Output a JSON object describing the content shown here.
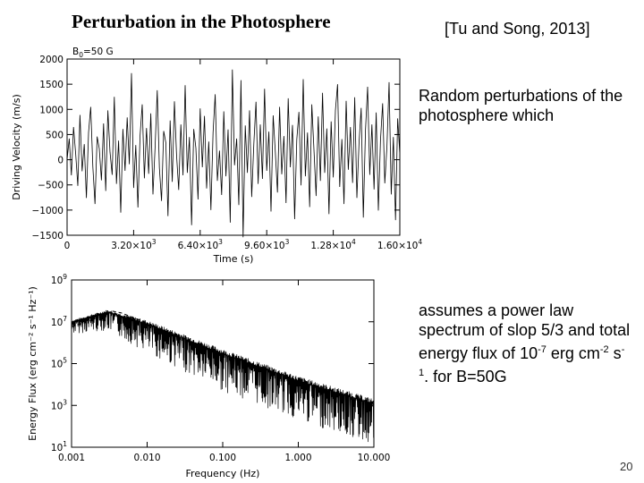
{
  "slide": {
    "title": "Perturbation in the Photosphere",
    "citation": "[Tu and Song, 2013]",
    "text1": "Random perturbations of the photosphere which",
    "text2_parts": [
      "assumes a power law spectrum of slop 5/3 and total energy flux of 10",
      "-7",
      " erg cm",
      "-2",
      " s",
      "-1",
      ". for B=50G"
    ],
    "page_number": "20"
  },
  "chart_data": [
    {
      "type": "line",
      "annotation": "B",
      "annotation_sub": "0",
      "annotation_rest": "=50 G",
      "xlabel": "Time (s)",
      "ylabel": "Driving Velocity (m/s)",
      "xlim": [
        0,
        16000
      ],
      "ylim": [
        -1500,
        2000
      ],
      "x_ticks": [
        0,
        3200,
        6400,
        9600,
        12800,
        16000
      ],
      "x_tick_labels": [
        {
          "mant": "0",
          "exp": ""
        },
        {
          "mant": "3.20×10",
          "exp": "3"
        },
        {
          "mant": "6.40×10",
          "exp": "3"
        },
        {
          "mant": "9.60×10",
          "exp": "3"
        },
        {
          "mant": "1.28×10",
          "exp": "4"
        },
        {
          "mant": "1.60×10",
          "exp": "4"
        }
      ],
      "y_ticks": [
        2000,
        1500,
        1000,
        500,
        0,
        -500,
        -1000,
        -1500
      ],
      "y_tick_labels": [
        "2000",
        "1500",
        "1000",
        "500",
        "0",
        "−500",
        "−1000",
        "−1500"
      ],
      "series": [
        {
          "values": [
            0,
            420,
            -310,
            650,
            120,
            -520,
            890,
            -230,
            310,
            -760,
            540,
            1050,
            -140,
            -880,
            460,
            220,
            -410,
            720,
            -620,
            980,
            150,
            -300,
            1250,
            -480,
            380,
            -1050,
            610,
            -220,
            840,
            -90,
            1720,
            -560,
            290,
            -950,
            480,
            1100,
            -370,
            630,
            -280,
            920,
            -690,
            250,
            1380,
            -160,
            -820,
            570,
            340,
            -1120,
            780,
            -440,
            1160,
            90,
            -600,
            700,
            -310,
            1480,
            -260,
            450,
            -1300,
            610,
            230,
            -790,
            1020,
            -150,
            870,
            -570,
            360,
            -1000,
            540,
            1300,
            -420,
            180,
            -700,
            960,
            -330,
            600,
            -1250,
            1790,
            -110,
            420,
            -900,
            1580,
            -1540,
            680,
            -260,
            980,
            -740,
            320,
            1150,
            -480,
            700,
            -380,
            1410,
            -220,
            560,
            -1030,
            880,
            160,
            -650,
            1050,
            -290,
            470,
            -860,
            1220,
            -150,
            690,
            -1180,
            400,
            950,
            -510,
            1600,
            -330,
            540,
            -940,
            1100,
            200,
            -720,
            860,
            -420,
            1330,
            -260,
            620,
            -1080,
            760,
            -350,
            980,
            1500,
            -540,
            410,
            -880,
            1170,
            -200,
            650,
            -460,
            1240,
            -760,
            330,
            1030,
            -1150,
            580,
            1450,
            -300,
            700,
            -590,
            940,
            -1010,
            390,
            1120,
            -470,
            260,
            1540,
            -690,
            450,
            -1200,
            820,
            110
          ]
        }
      ]
    },
    {
      "type": "line",
      "scale": "log-log",
      "xlabel": "Frequency (Hz)",
      "ylabel": "Energy Flux (erg cm⁻² s⁻¹ Hz⁻¹)",
      "xlim": [
        0.001,
        10
      ],
      "ylim": [
        10,
        1000000000
      ],
      "x_ticks": [
        0.001,
        0.01,
        0.1,
        1,
        10
      ],
      "x_tick_labels": [
        "0.001",
        "0.010",
        "0.100",
        "1.000",
        "10.000"
      ],
      "y_ticks": [
        1000000000,
        10000000,
        100000,
        1000,
        10
      ],
      "y_tick_labels": [
        {
          "mant": "10",
          "exp": "9"
        },
        {
          "mant": "10",
          "exp": "7"
        },
        {
          "mant": "10",
          "exp": "5"
        },
        {
          "mant": "10",
          "exp": "3"
        },
        {
          "mant": "10",
          "exp": "1"
        }
      ],
      "series": [
        {
          "style": "dashed",
          "x": [
            0.001,
            0.0015,
            0.002,
            0.0025,
            0.003,
            0.0035,
            0.0045,
            0.006,
            0.01
          ],
          "y": [
            6000000,
            9000000,
            13000000,
            20000000,
            28000000,
            32000000,
            27000000,
            18000000,
            9000000
          ]
        },
        {
          "style": "solid",
          "x": [
            0.001,
            0.003,
            0.01,
            0.1,
            1,
            10
          ],
          "y": [
            10000000,
            30000000,
            8000000,
            300000,
            15000,
            1200
          ],
          "spread_decades": [
            0.6,
            0.9,
            1.4,
            1.8,
            1.9,
            2.0
          ]
        }
      ]
    }
  ]
}
